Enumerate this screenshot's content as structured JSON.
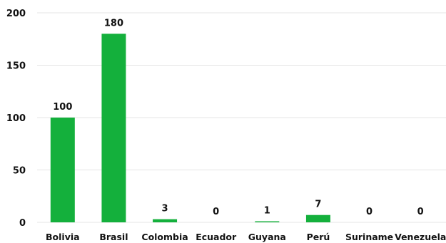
{
  "chart_data": {
    "type": "bar",
    "categories": [
      "Bolivia",
      "Brasil",
      "Colombia",
      "Ecuador",
      "Guyana",
      "Perú",
      "Suriname",
      "Venezuela"
    ],
    "values": [
      100,
      180,
      3,
      0,
      1,
      7,
      0,
      0
    ],
    "data_labels": [
      "100",
      "180",
      "3",
      "0",
      "1",
      "7",
      "0",
      "0"
    ],
    "yticks": [
      0,
      50,
      100,
      150,
      200
    ],
    "ylim": [
      0,
      200
    ],
    "grid": true,
    "legend": "none",
    "bar_color": "#14b03c",
    "title": "",
    "xlabel": "",
    "ylabel": ""
  }
}
